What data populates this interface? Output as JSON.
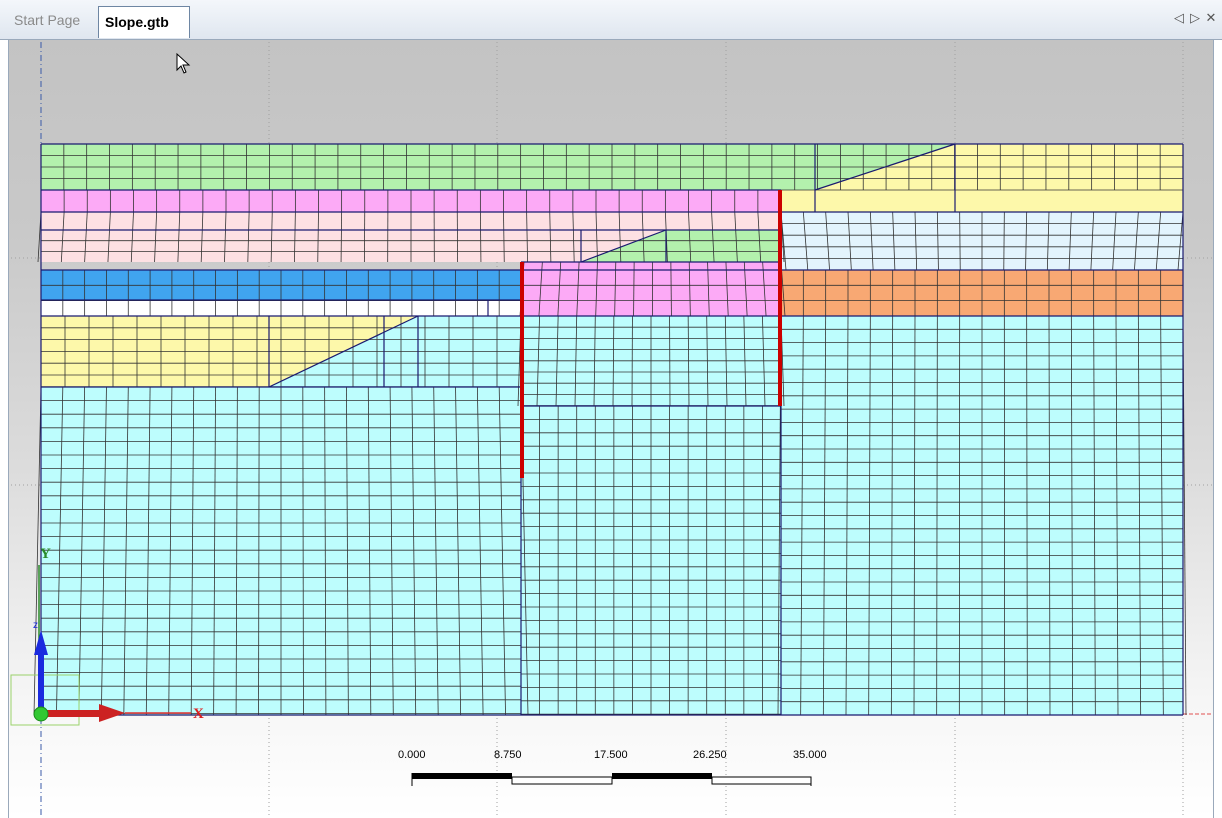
{
  "tabs": [
    {
      "label": "Start Page",
      "active": false
    },
    {
      "label": "Slope.gtb",
      "active": true
    }
  ],
  "tab_controls": {
    "prev": "◁",
    "next": "▷",
    "close": "✕"
  },
  "axis": {
    "x_label": "X",
    "y_label": "Y",
    "z_label": "z"
  },
  "scale_bar": {
    "labels": [
      "0.000",
      "8.750",
      "17.500",
      "26.250",
      "35.000"
    ]
  },
  "colors": {
    "green": "#b3f1ad",
    "magenta": "#fcaaf6",
    "pink": "#fde0e3",
    "blue": "#40a4ef",
    "white": "#ffffff",
    "yellow": "#fdf8aa",
    "cyan": "#bdfdfd",
    "orange": "#f8a873",
    "lightblue": "#e3f4fd",
    "wall": "#cc0000",
    "mesh_line": "#333333",
    "boundary": "#1a1a70"
  }
}
